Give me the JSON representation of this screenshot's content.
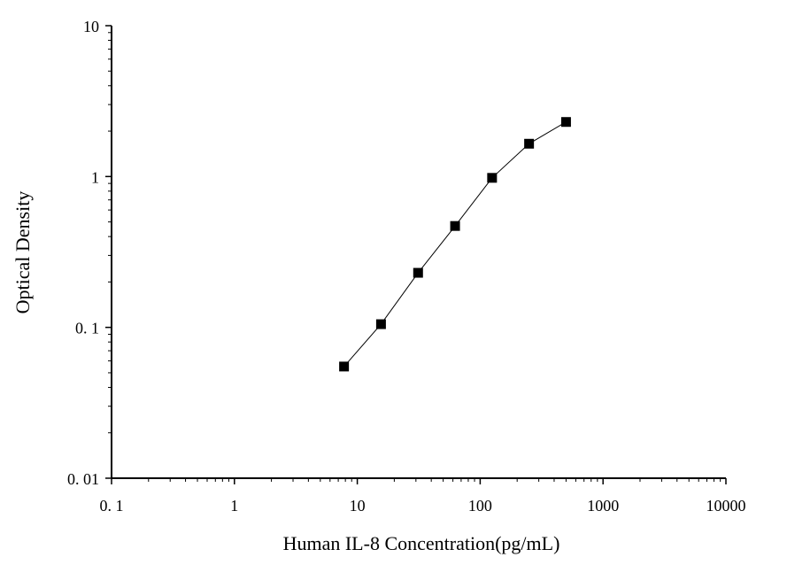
{
  "chart_data": {
    "type": "scatter",
    "title": "",
    "xlabel": "Human IL-8 Concentration(pg/mL)",
    "ylabel": "Optical Density",
    "x_scale": "log",
    "y_scale": "log",
    "xlim": [
      0.1,
      10000
    ],
    "ylim": [
      0.01,
      10
    ],
    "x_tick_labels": [
      "0. 1",
      "1",
      "10",
      "100",
      "1000",
      "10000"
    ],
    "y_tick_labels": [
      "0. 01",
      "0. 1",
      "1",
      "10"
    ],
    "grid": false,
    "legend": "none",
    "series": [
      {
        "x": [
          7.8,
          15.6,
          31.25,
          62.5,
          125,
          250,
          500
        ],
        "y": [
          0.055,
          0.105,
          0.23,
          0.47,
          0.98,
          1.65,
          2.3
        ],
        "marker": "square",
        "connected": true
      }
    ],
    "colors": {
      "line": "#000000",
      "marker": "#000000",
      "axis": "#000000"
    }
  }
}
